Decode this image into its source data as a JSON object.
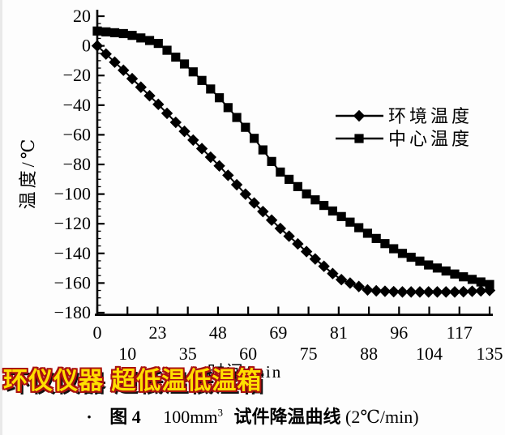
{
  "watermark": {
    "text": "环仪仪器 超低温低温箱",
    "fill_color": "#ffdf00",
    "outline_color": "#aa1111",
    "shadow_color": "#111111"
  },
  "caption": {
    "dot": "·",
    "figure_label": "图 4",
    "volume": "100mm",
    "volume_sup": "3",
    "subject": "试件降温曲线",
    "rate": "(2℃/min)"
  },
  "chart_data": {
    "type": "line",
    "title": "",
    "xlabel": "时间/min",
    "ylabel": "温度/℃",
    "x_tick_labels": [
      "0",
      "10",
      "23",
      "35",
      "48",
      "60",
      "69",
      "75",
      "81",
      "88",
      "96",
      "104",
      "117",
      "135"
    ],
    "x_tick_layout": "staggered-two-rows",
    "y_tick_labels": [
      "20",
      "0",
      "−20",
      "−40",
      "−60",
      "−80",
      "−100",
      "−120",
      "−140",
      "−160",
      "−180"
    ],
    "ylim": [
      -180,
      20
    ],
    "ytick_step": 20,
    "grid": false,
    "legend": {
      "position": "center-right",
      "entries": [
        "环境温度",
        "中心温度"
      ]
    },
    "series": [
      {
        "name": "环境温度",
        "marker": "diamond",
        "color": "#000000",
        "x": [
          0,
          10,
          23,
          35,
          48,
          60,
          69,
          75,
          81,
          88,
          96,
          104,
          117,
          135
        ],
        "values": [
          0,
          -19,
          -39,
          -60,
          -80,
          -102,
          -122,
          -140,
          -157,
          -165,
          -166,
          -166,
          -166,
          -165
        ]
      },
      {
        "name": "中心温度",
        "marker": "square",
        "color": "#000000",
        "x": [
          0,
          10,
          23,
          35,
          48,
          60,
          69,
          75,
          81,
          88,
          96,
          104,
          117,
          135
        ],
        "values": [
          10,
          8,
          2,
          -14,
          -34,
          -57,
          -84,
          -101,
          -114,
          -127,
          -139,
          -148,
          -155,
          -161
        ]
      }
    ]
  }
}
